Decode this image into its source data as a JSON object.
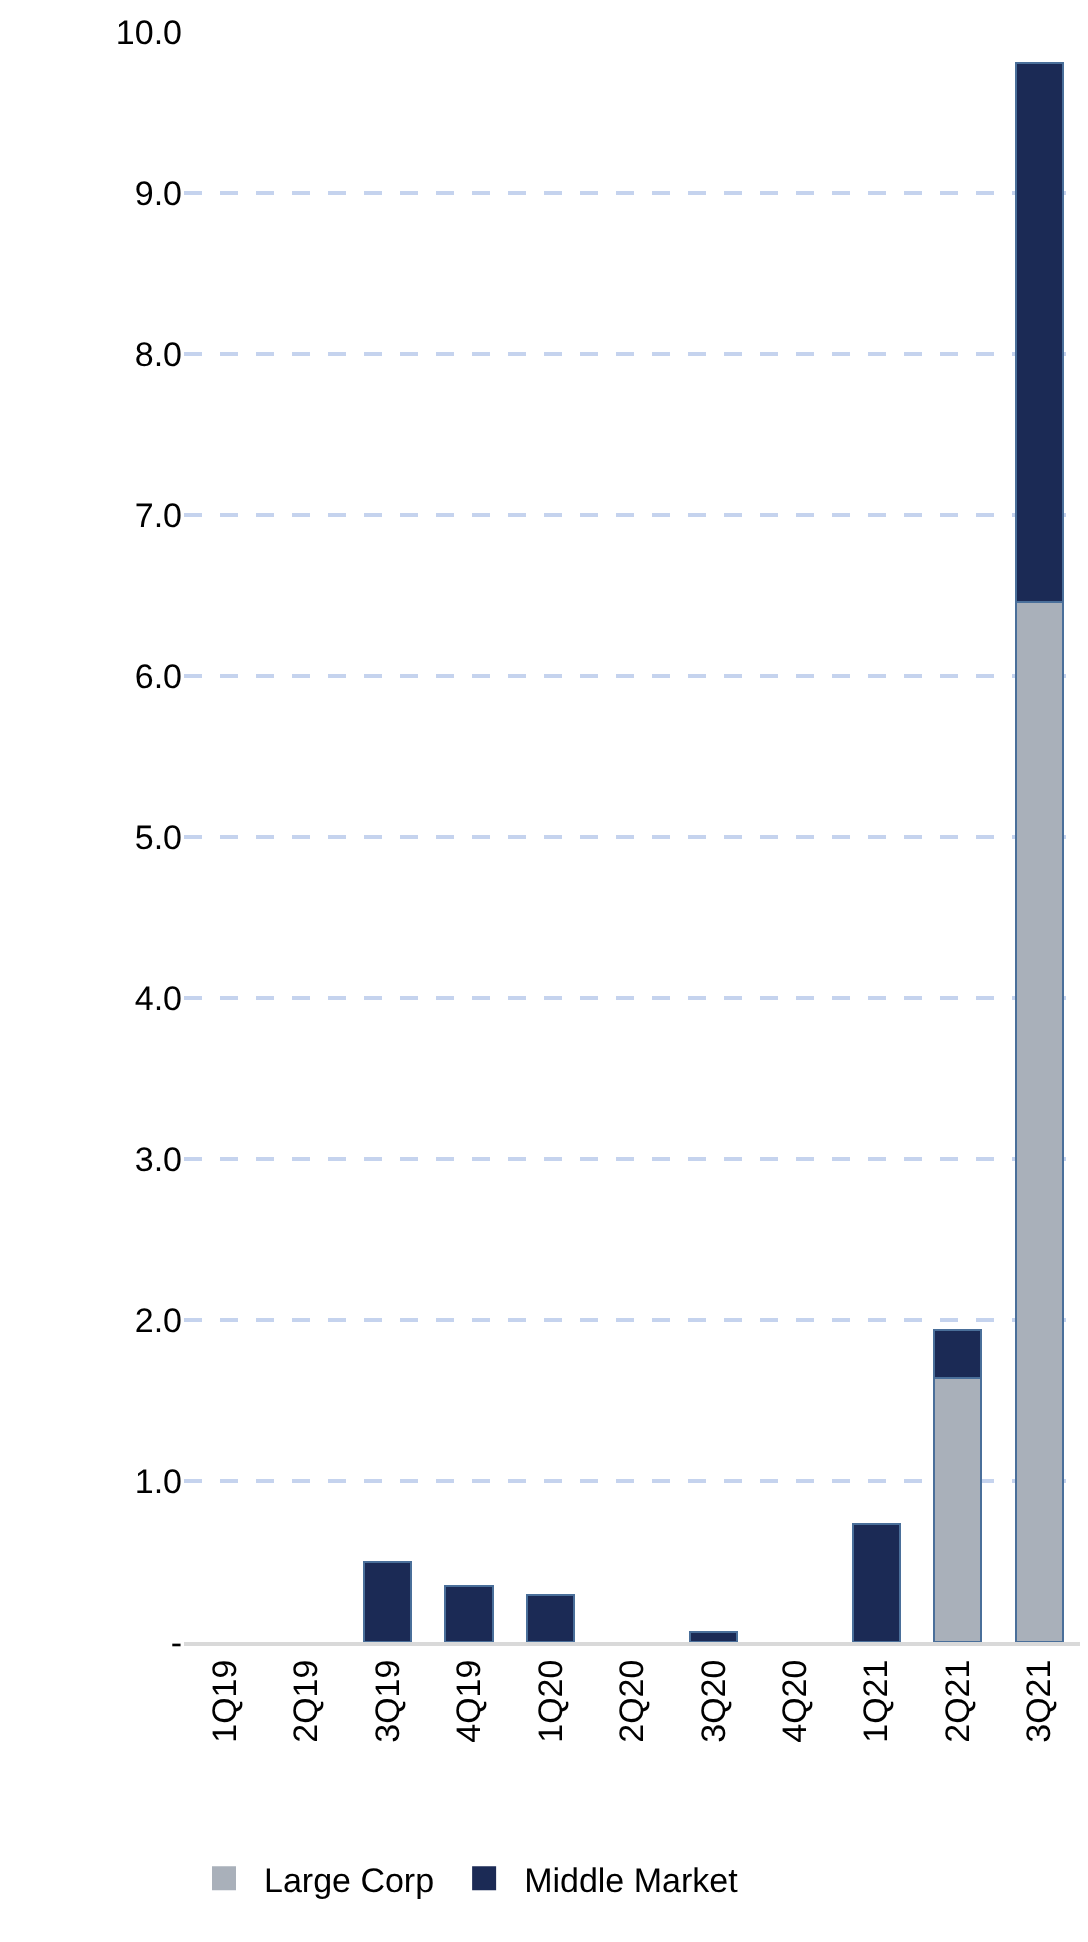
{
  "chart_data": {
    "type": "bar",
    "stacked": true,
    "categories": [
      "1Q19",
      "2Q19",
      "3Q19",
      "4Q19",
      "1Q20",
      "2Q20",
      "3Q20",
      "4Q20",
      "1Q21",
      "2Q21",
      "3Q21"
    ],
    "series": [
      {
        "name": "Large Corp",
        "color": "#a9b0ba",
        "values": [
          0,
          0,
          0,
          0,
          0,
          0,
          0,
          0,
          0,
          1.64,
          6.46
        ]
      },
      {
        "name": "Middle Market",
        "color": "#1b2a55",
        "values": [
          0,
          0,
          0.5,
          0.35,
          0.29,
          0,
          0.06,
          0,
          0.73,
          0.3,
          3.35
        ]
      }
    ],
    "ylim": [
      0,
      10
    ],
    "yticks": [
      {
        "value": 0,
        "label": "-"
      },
      {
        "value": 1,
        "label": "1.0"
      },
      {
        "value": 2,
        "label": "2.0"
      },
      {
        "value": 3,
        "label": "3.0"
      },
      {
        "value": 4,
        "label": "4.0"
      },
      {
        "value": 5,
        "label": "5.0"
      },
      {
        "value": 6,
        "label": "6.0"
      },
      {
        "value": 7,
        "label": "7.0"
      },
      {
        "value": 8,
        "label": "8.0"
      },
      {
        "value": 9,
        "label": "9.0"
      },
      {
        "value": 10,
        "label": "10.0"
      }
    ],
    "grid": "y",
    "legend": "bottom left"
  }
}
